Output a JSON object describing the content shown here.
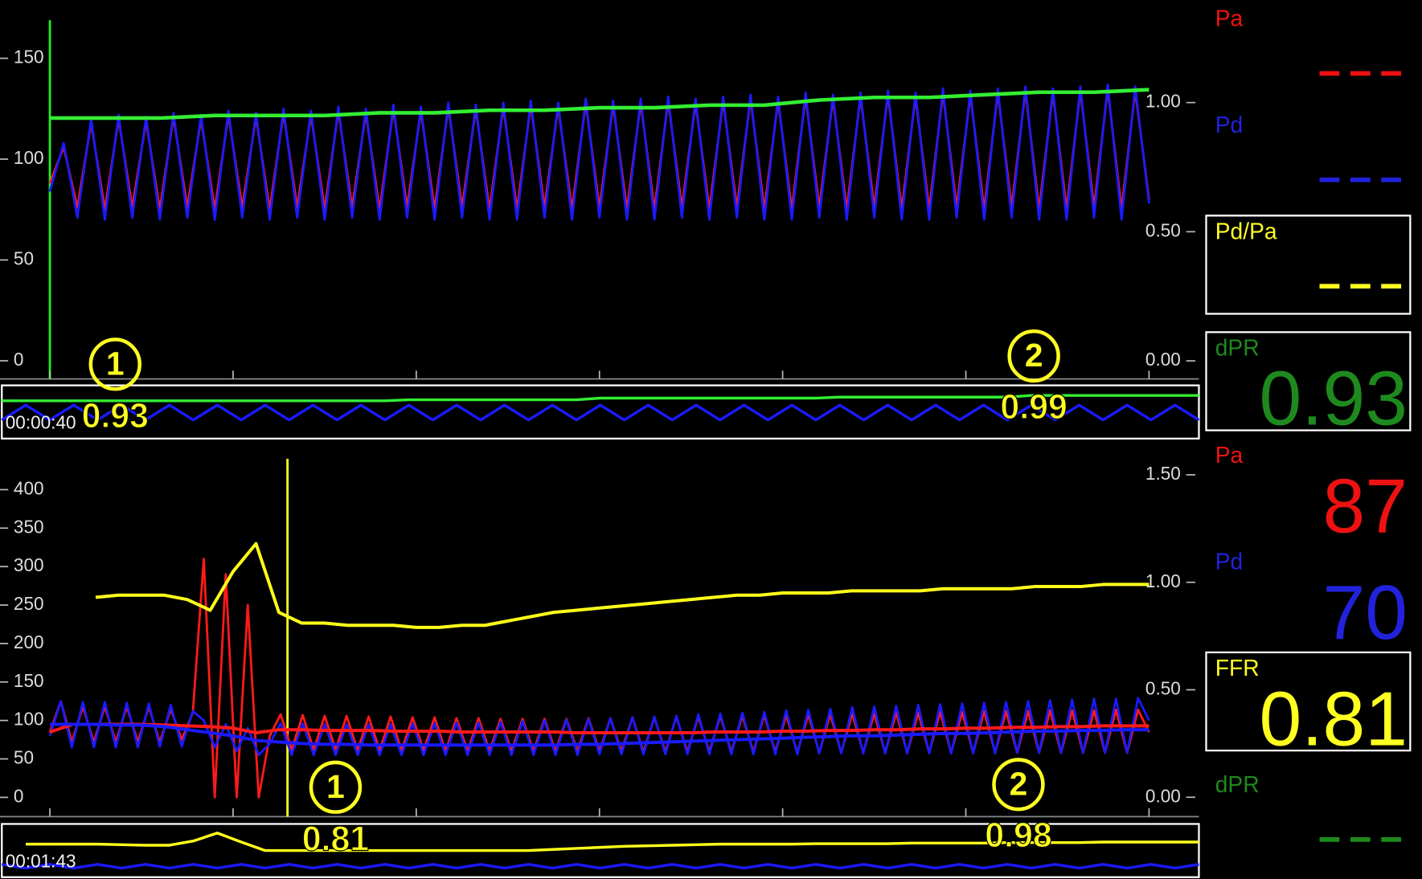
{
  "chart_data": [
    {
      "type": "line",
      "ylim": [
        -9,
        178
      ],
      "yticks": [
        0,
        50,
        100,
        150
      ],
      "series": [
        {
          "color": "#ff1a1a",
          "values": [
            88,
            106,
            76,
            118,
            75,
            120,
            76,
            119,
            75,
            121,
            76,
            120,
            75,
            122,
            76,
            121,
            75,
            123,
            76,
            122,
            75,
            124,
            76,
            123,
            75,
            125,
            76,
            124,
            75,
            126,
            76,
            125,
            75,
            126,
            75,
            127,
            76,
            126,
            75,
            128,
            76,
            127,
            75,
            128,
            75,
            129,
            76,
            128,
            75,
            129,
            76,
            130,
            75,
            129,
            75,
            131,
            76,
            130,
            75,
            131,
            76,
            132,
            75,
            131,
            75,
            133,
            76,
            132,
            75,
            133,
            76,
            134,
            75,
            133,
            75,
            134,
            76,
            135,
            75,
            134,
            80
          ]
        },
        {
          "color": "#1a1aff",
          "values": [
            84,
            108,
            71,
            120,
            70,
            122,
            71,
            121,
            70,
            123,
            71,
            122,
            70,
            124,
            71,
            123,
            70,
            125,
            71,
            124,
            70,
            126,
            71,
            125,
            70,
            127,
            71,
            126,
            70,
            128,
            71,
            127,
            70,
            128,
            70,
            129,
            71,
            128,
            70,
            130,
            71,
            129,
            70,
            130,
            70,
            131,
            71,
            130,
            70,
            131,
            71,
            132,
            70,
            131,
            70,
            133,
            71,
            132,
            70,
            133,
            71,
            134,
            70,
            133,
            70,
            135,
            71,
            134,
            70,
            135,
            71,
            136,
            70,
            135,
            70,
            136,
            71,
            137,
            70,
            136,
            78
          ]
        }
      ]
    },
    {
      "type": "line",
      "y2lim": [
        -0.07,
        1.39
      ],
      "y2ticks": [
        {
          "value": 0,
          "label": "0.00"
        },
        {
          "value": 0.5,
          "label": "0.50"
        },
        {
          "value": 1,
          "label": "1.00"
        }
      ],
      "series": [
        {
          "color": "#33ee33",
          "axis": "y2",
          "values": [
            0.94,
            0.94,
            0.94,
            0.95,
            0.95,
            0.95,
            0.96,
            0.96,
            0.97,
            0.97,
            0.98,
            0.98,
            0.99,
            0.99,
            1.01,
            1.02,
            1.02,
            1.03,
            1.04,
            1.04,
            1.05
          ]
        }
      ]
    },
    {
      "type": "line",
      "ylim": [
        0,
        1
      ],
      "time": "00:00:40",
      "annotations": [
        {
          "marker": "1",
          "value": 0.93
        },
        {
          "marker": "2",
          "value": 0.99
        }
      ],
      "series": [
        {
          "color": "#33ee33",
          "values": [
            0.71,
            0.71,
            0.71,
            0.71,
            0.71,
            0.71,
            0.71,
            0.71,
            0.71,
            0.71,
            0.71,
            0.71,
            0.71,
            0.71,
            0.71,
            0.71,
            0.71,
            0.73,
            0.73,
            0.73,
            0.73,
            0.73,
            0.73,
            0.73,
            0.73,
            0.76,
            0.76,
            0.76,
            0.76,
            0.76,
            0.76,
            0.76,
            0.76,
            0.76,
            0.76,
            0.78,
            0.78,
            0.78,
            0.78,
            0.78,
            0.78,
            0.78,
            0.78,
            0.81,
            0.81,
            0.81,
            0.81,
            0.81,
            0.81,
            0.81,
            0.81
          ]
        },
        {
          "color": "#1a1aff",
          "values": [
            0.35,
            0.63,
            0.35,
            0.63,
            0.35,
            0.63,
            0.35,
            0.63,
            0.35,
            0.63,
            0.35,
            0.63,
            0.35,
            0.63,
            0.35,
            0.63,
            0.35,
            0.63,
            0.35,
            0.63,
            0.35,
            0.63,
            0.35,
            0.63,
            0.35,
            0.63,
            0.35,
            0.63,
            0.35,
            0.63,
            0.35,
            0.63,
            0.35,
            0.63,
            0.35,
            0.63,
            0.35,
            0.63,
            0.35,
            0.63,
            0.35,
            0.63,
            0.35,
            0.63,
            0.35,
            0.63,
            0.35,
            0.63,
            0.35,
            0.63,
            0.35
          ]
        }
      ]
    },
    {
      "type": "line",
      "ylim": [
        -25,
        464
      ],
      "yticks": [
        0,
        50,
        100,
        150,
        200,
        250,
        300,
        350,
        400
      ],
      "series": [
        {
          "color": "#ff1a1a",
          "values": [
            85,
            125,
            72,
            118,
            72,
            118,
            72,
            118,
            72,
            118,
            72,
            115,
            75,
            110,
            310,
            0,
            290,
            0,
            250,
            0,
            80,
            108,
            62,
            107,
            62,
            106,
            62,
            106,
            61,
            105,
            61,
            105,
            61,
            104,
            61,
            104,
            60,
            103,
            60,
            103,
            60,
            102,
            60,
            102,
            60,
            102,
            60,
            102,
            60,
            103,
            60,
            103,
            60,
            104,
            59,
            104,
            59,
            105,
            59,
            105,
            59,
            106,
            59,
            106,
            59,
            107,
            59,
            107,
            58,
            108,
            58,
            108,
            58,
            109,
            58,
            109,
            58,
            110,
            58,
            110,
            58,
            111,
            58,
            111,
            58,
            112,
            58,
            112,
            58,
            112,
            58,
            113,
            58,
            113,
            58,
            113,
            58,
            114,
            58,
            114,
            85
          ]
        },
        {
          "color": "#1a1aff",
          "values": [
            80,
            125,
            65,
            124,
            65,
            124,
            65,
            123,
            65,
            122,
            66,
            120,
            66,
            112,
            100,
            65,
            95,
            60,
            90,
            55,
            70,
            96,
            55,
            96,
            55,
            95,
            55,
            95,
            55,
            95,
            55,
            95,
            55,
            96,
            55,
            96,
            55,
            97,
            55,
            97,
            55,
            98,
            55,
            99,
            55,
            100,
            55,
            101,
            55,
            102,
            56,
            103,
            56,
            104,
            56,
            105,
            56,
            106,
            56,
            108,
            56,
            109,
            56,
            110,
            56,
            111,
            56,
            113,
            56,
            114,
            57,
            115,
            57,
            117,
            57,
            118,
            57,
            119,
            57,
            120,
            57,
            121,
            57,
            122,
            57,
            123,
            57,
            124,
            58,
            125,
            58,
            126,
            58,
            127,
            58,
            128,
            58,
            128,
            58,
            129,
            100
          ]
        }
      ]
    },
    {
      "type": "line",
      "ylim": [
        -25,
        464
      ],
      "y2lim": [
        -0.09,
        1.66
      ],
      "y2ticks": [
        {
          "value": 0,
          "label": "0.00"
        },
        {
          "value": 0.5,
          "label": "0.50"
        },
        {
          "value": 1,
          "label": "1.00"
        },
        {
          "value": 1.5,
          "label": "1.50"
        }
      ],
      "series": [
        {
          "color": "#ff1a1a",
          "values": [
            85,
            95,
            95,
            95,
            95,
            94,
            93,
            92,
            90,
            84,
            88,
            88,
            87,
            87,
            87,
            86,
            86,
            86,
            85,
            85,
            85,
            85,
            85,
            84,
            84,
            84,
            84,
            84,
            84,
            85,
            85,
            85,
            86,
            86,
            87,
            87,
            88,
            88,
            89,
            89,
            90,
            90,
            91,
            91,
            92,
            92,
            93,
            93,
            93
          ]
        },
        {
          "color": "#1a1aff",
          "values": [
            95,
            95,
            95,
            94,
            94,
            92,
            88,
            84,
            80,
            74,
            72,
            70,
            69,
            69,
            68,
            68,
            68,
            68,
            68,
            68,
            68,
            68,
            68,
            69,
            69,
            70,
            71,
            72,
            73,
            74,
            75,
            76,
            77,
            78,
            79,
            80,
            80,
            81,
            82,
            83,
            83,
            84,
            85,
            86,
            86,
            87,
            87,
            88,
            88
          ]
        },
        {
          "color": "#ffff1a",
          "axis": "y2",
          "values": [
            null,
            null,
            0.93,
            0.94,
            0.94,
            0.94,
            0.92,
            0.87,
            1.05,
            1.18,
            0.86,
            0.81,
            0.81,
            0.8,
            0.8,
            0.8,
            0.79,
            0.79,
            0.8,
            0.8,
            0.82,
            0.84,
            0.86,
            0.87,
            0.88,
            0.89,
            0.9,
            0.91,
            0.92,
            0.93,
            0.94,
            0.94,
            0.95,
            0.95,
            0.95,
            0.96,
            0.96,
            0.96,
            0.96,
            0.97,
            0.97,
            0.97,
            0.97,
            0.98,
            0.98,
            0.98,
            0.99,
            0.99,
            0.99
          ]
        }
      ]
    },
    {
      "type": "line",
      "ylim": [
        0,
        1
      ],
      "time": "00:01:43",
      "annotations": [
        {
          "marker": "1",
          "value": 0.81
        },
        {
          "marker": "2",
          "value": 0.98
        }
      ],
      "series": [
        {
          "color": "#ffff1a",
          "values": [
            null,
            0.62,
            0.62,
            0.62,
            0.62,
            0.61,
            0.6,
            0.6,
            0.68,
            0.83,
            0.66,
            0.5,
            0.5,
            0.5,
            0.5,
            0.5,
            0.5,
            0.5,
            0.5,
            0.5,
            0.5,
            0.5,
            0.5,
            0.52,
            0.54,
            0.56,
            0.58,
            0.59,
            0.6,
            0.61,
            0.62,
            0.62,
            0.62,
            0.62,
            0.63,
            0.63,
            0.63,
            0.63,
            0.64,
            0.64,
            0.64,
            0.64,
            0.65,
            0.65,
            0.65,
            0.65,
            0.66,
            0.66,
            0.66,
            0.66,
            0.66
          ]
        },
        {
          "color": "#1a1aff",
          "values": [
            0.24,
            0.17,
            0.24,
            0.17,
            0.24,
            0.17,
            0.24,
            0.17,
            0.24,
            0.17,
            0.24,
            0.17,
            0.24,
            0.17,
            0.24,
            0.17,
            0.24,
            0.17,
            0.24,
            0.17,
            0.24,
            0.17,
            0.24,
            0.17,
            0.24,
            0.17,
            0.24,
            0.17,
            0.24,
            0.17,
            0.24,
            0.17,
            0.24,
            0.17,
            0.24,
            0.17,
            0.24,
            0.17,
            0.24,
            0.17,
            0.24,
            0.17,
            0.24,
            0.17,
            0.24,
            0.17,
            0.24,
            0.17,
            0.24,
            0.17,
            0.24
          ]
        }
      ]
    }
  ],
  "side_panel": {
    "top": [
      {
        "label": "Pa",
        "color": "#ee1111"
      },
      {
        "label": "Pd",
        "color": "#2222dd"
      },
      {
        "label": "Pd/Pa",
        "color": "#ffff22",
        "boxed": true
      },
      {
        "label": "dPR",
        "color": "#1e8a1e",
        "value": 0.93,
        "boxed": true
      }
    ],
    "bottom": [
      {
        "label": "Pa",
        "color": "#ee1111",
        "value": 87
      },
      {
        "label": "Pd",
        "color": "#2222dd",
        "value": 70
      },
      {
        "label": "FFR",
        "color": "#ffff22",
        "value": 0.81,
        "boxed": true
      },
      {
        "label": "dPR",
        "color": "#1e8a1e"
      }
    ]
  }
}
